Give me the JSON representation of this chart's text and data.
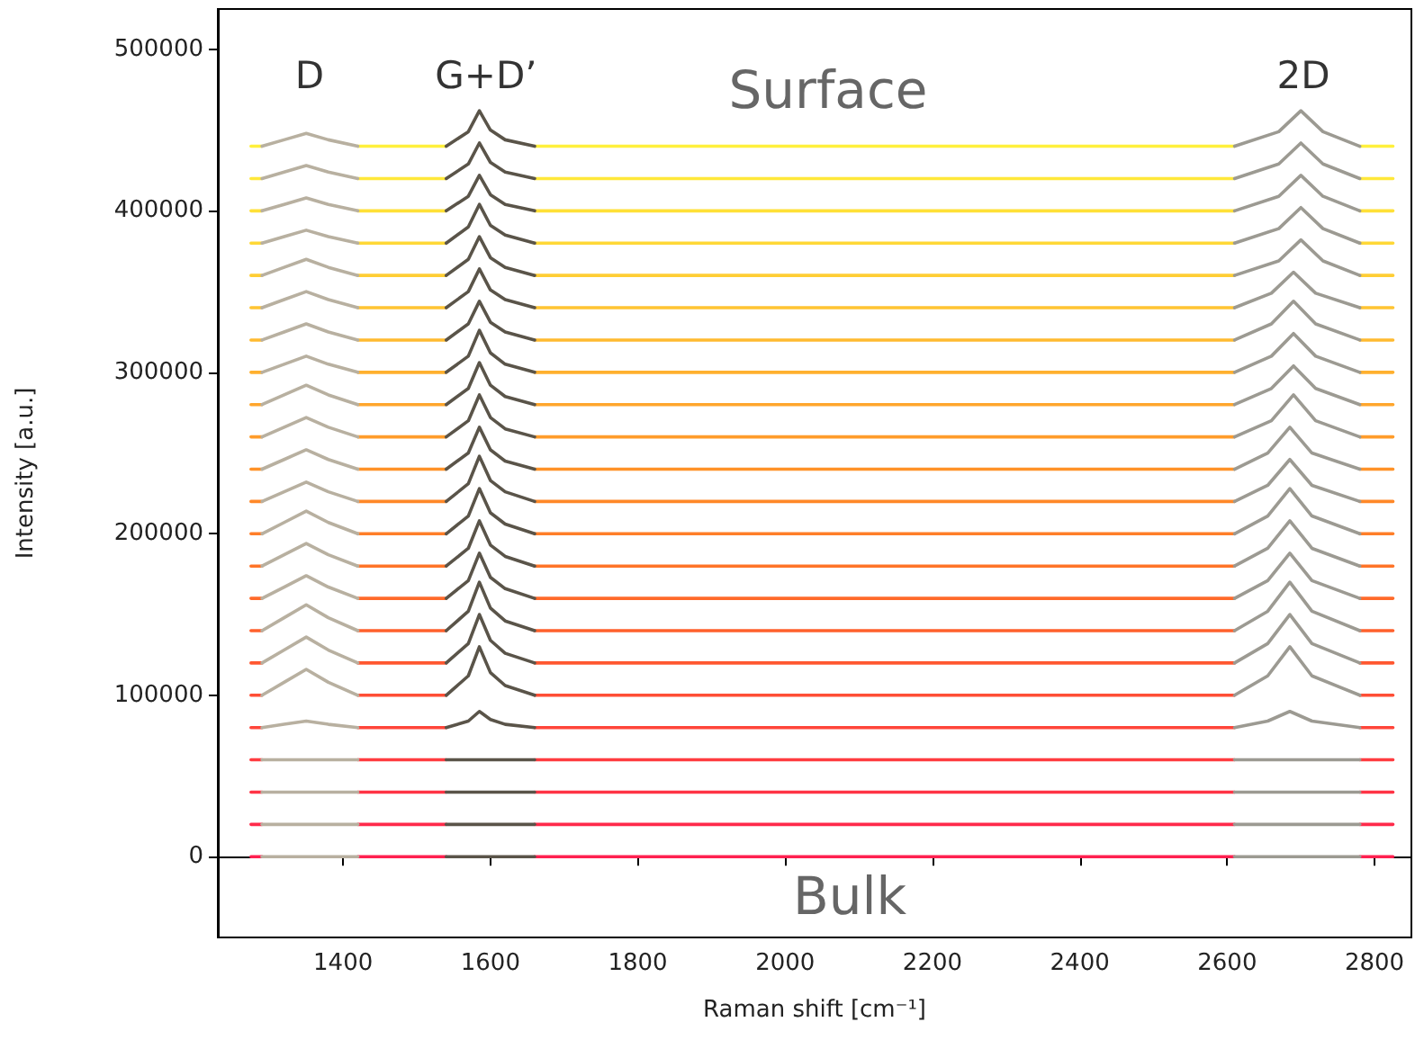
{
  "chart_data": {
    "type": "line",
    "xlabel": "Raman shift [cm⁻¹]",
    "ylabel": "Intensity [a.u.]",
    "annotations": [
      "D",
      "G+D’",
      "Surface",
      "2D",
      "Bulk"
    ],
    "xlim": [
      1230,
      2850
    ],
    "xticks": [
      1400,
      1600,
      1800,
      2000,
      2200,
      2400,
      2600,
      2800
    ],
    "ylim": [
      -50000,
      525000
    ],
    "yticks": [
      0,
      100000,
      200000,
      300000,
      400000,
      500000
    ],
    "marker": "none",
    "line_style": "solid",
    "x": [
      1275,
      1290,
      1355,
      1420,
      1540,
      1600,
      1660,
      2000,
      2400,
      2610,
      2700,
      2780,
      2825
    ],
    "series": [
      {
        "color": "#ff2050",
        "values": [
          0,
          0,
          null,
          0,
          0,
          null,
          0,
          0,
          0,
          0,
          null,
          0,
          0
        ]
      },
      {
        "color": "#ff2a4a",
        "values": [
          20000,
          20000,
          null,
          20000,
          20000,
          null,
          20000,
          20000,
          20000,
          20000,
          null,
          20000,
          20000
        ]
      },
      {
        "color": "#ff3345",
        "values": [
          40000,
          40000,
          null,
          40000,
          40000,
          null,
          40000,
          40000,
          40000,
          40000,
          null,
          40000,
          40000
        ]
      },
      {
        "color": "#ff3c40",
        "values": [
          60000,
          60000,
          null,
          60000,
          60000,
          null,
          60000,
          60000,
          60000,
          60000,
          null,
          60000,
          60000
        ]
      },
      {
        "color": "#ff453a",
        "values": [
          80000,
          80000,
          null,
          80000,
          80000,
          null,
          80000,
          80000,
          80000,
          80000,
          null,
          80000,
          80000
        ]
      },
      {
        "color": "#ff4e35",
        "values": [
          100000,
          100000,
          null,
          100000,
          100000,
          null,
          100000,
          100000,
          100000,
          100000,
          null,
          100000,
          100000
        ]
      },
      {
        "color": "#ff5730",
        "values": [
          120000,
          120000,
          null,
          120000,
          120000,
          null,
          120000,
          120000,
          120000,
          120000,
          null,
          120000,
          120000
        ]
      },
      {
        "color": "#ff602c",
        "values": [
          140000,
          140000,
          null,
          140000,
          140000,
          null,
          140000,
          140000,
          140000,
          140000,
          null,
          140000,
          140000
        ]
      },
      {
        "color": "#ff6a2a",
        "values": [
          160000,
          160000,
          null,
          160000,
          160000,
          null,
          160000,
          160000,
          160000,
          160000,
          null,
          160000,
          160000
        ]
      },
      {
        "color": "#ff7428",
        "values": [
          180000,
          180000,
          null,
          180000,
          180000,
          null,
          180000,
          180000,
          180000,
          180000,
          null,
          180000,
          180000
        ]
      },
      {
        "color": "#ff7e28",
        "values": [
          200000,
          200000,
          null,
          200000,
          200000,
          null,
          200000,
          200000,
          200000,
          200000,
          null,
          200000,
          200000
        ]
      },
      {
        "color": "#ff8828",
        "values": [
          220000,
          220000,
          null,
          220000,
          220000,
          null,
          220000,
          220000,
          220000,
          220000,
          null,
          220000,
          220000
        ]
      },
      {
        "color": "#ff9228",
        "values": [
          240000,
          240000,
          null,
          240000,
          240000,
          null,
          240000,
          240000,
          240000,
          240000,
          null,
          240000,
          240000
        ]
      },
      {
        "color": "#ff9c2a",
        "values": [
          260000,
          260000,
          null,
          260000,
          260000,
          null,
          260000,
          260000,
          260000,
          260000,
          null,
          260000,
          260000
        ]
      },
      {
        "color": "#ffa62c",
        "values": [
          280000,
          280000,
          null,
          280000,
          280000,
          null,
          280000,
          280000,
          280000,
          280000,
          null,
          280000,
          280000
        ]
      },
      {
        "color": "#ffb02e",
        "values": [
          300000,
          300000,
          null,
          300000,
          300000,
          null,
          300000,
          300000,
          300000,
          300000,
          null,
          300000,
          300000
        ]
      },
      {
        "color": "#ffba30",
        "values": [
          320000,
          320000,
          null,
          320000,
          320000,
          null,
          320000,
          320000,
          320000,
          320000,
          null,
          320000,
          320000
        ]
      },
      {
        "color": "#ffc432",
        "values": [
          340000,
          340000,
          null,
          340000,
          340000,
          null,
          340000,
          340000,
          340000,
          340000,
          null,
          340000,
          340000
        ]
      },
      {
        "color": "#ffce34",
        "values": [
          360000,
          360000,
          null,
          360000,
          360000,
          null,
          360000,
          360000,
          360000,
          360000,
          null,
          360000,
          360000
        ]
      },
      {
        "color": "#ffd836",
        "values": [
          380000,
          380000,
          null,
          380000,
          380000,
          null,
          380000,
          380000,
          380000,
          380000,
          null,
          380000,
          380000
        ]
      },
      {
        "color": "#ffe038",
        "values": [
          400000,
          400000,
          null,
          400000,
          400000,
          null,
          400000,
          400000,
          400000,
          400000,
          null,
          400000,
          400000
        ]
      },
      {
        "color": "#ffe83a",
        "values": [
          420000,
          420000,
          null,
          420000,
          420000,
          null,
          420000,
          420000,
          420000,
          420000,
          null,
          420000,
          420000
        ]
      },
      {
        "color": "#fff03c",
        "values": [
          440000,
          440000,
          null,
          440000,
          440000,
          null,
          440000,
          440000,
          440000,
          440000,
          null,
          440000,
          440000
        ]
      },
      {
        "color": "#b8b0a0",
        "x": [
          1290,
          1320,
          1350,
          1380,
          1420
        ],
        "values": [
          0,
          0,
          0,
          0,
          0
        ]
      },
      {
        "color": "#b8b0a0",
        "x": [
          1290,
          1320,
          1350,
          1380,
          1420
        ],
        "values": [
          20000,
          20000,
          20000,
          20000,
          20000
        ]
      },
      {
        "color": "#b8b0a0",
        "x": [
          1290,
          1320,
          1350,
          1380,
          1420
        ],
        "values": [
          40000,
          40000,
          40000,
          40000,
          40000
        ]
      },
      {
        "color": "#b8b0a0",
        "x": [
          1290,
          1320,
          1350,
          1380,
          1420
        ],
        "values": [
          60000,
          60000,
          60000,
          60000,
          60000
        ]
      },
      {
        "color": "#b8b0a0",
        "x": [
          1290,
          1320,
          1350,
          1380,
          1420
        ],
        "values": [
          80000,
          82000,
          84000,
          82000,
          80000
        ]
      },
      {
        "color": "#b8b0a0",
        "x": [
          1290,
          1320,
          1350,
          1380,
          1420
        ],
        "values": [
          100000,
          108000,
          116000,
          108000,
          100000
        ]
      },
      {
        "color": "#b8b0a0",
        "x": [
          1290,
          1320,
          1350,
          1380,
          1420
        ],
        "values": [
          120000,
          128000,
          136000,
          128000,
          120000
        ]
      },
      {
        "color": "#b8b0a0",
        "x": [
          1290,
          1320,
          1350,
          1380,
          1420
        ],
        "values": [
          140000,
          148000,
          156000,
          148000,
          140000
        ]
      },
      {
        "color": "#b8b0a0",
        "x": [
          1290,
          1320,
          1350,
          1380,
          1420
        ],
        "values": [
          160000,
          167000,
          174000,
          167000,
          160000
        ]
      },
      {
        "color": "#b8b0a0",
        "x": [
          1290,
          1320,
          1350,
          1380,
          1420
        ],
        "values": [
          180000,
          187000,
          194000,
          187000,
          180000
        ]
      },
      {
        "color": "#b8b0a0",
        "x": [
          1290,
          1320,
          1350,
          1380,
          1420
        ],
        "values": [
          200000,
          207000,
          214000,
          207000,
          200000
        ]
      },
      {
        "color": "#b8b0a0",
        "x": [
          1290,
          1320,
          1350,
          1380,
          1420
        ],
        "values": [
          220000,
          226000,
          232000,
          226000,
          220000
        ]
      },
      {
        "color": "#b8b0a0",
        "x": [
          1290,
          1320,
          1350,
          1380,
          1420
        ],
        "values": [
          240000,
          246000,
          252000,
          246000,
          240000
        ]
      },
      {
        "color": "#b8b0a0",
        "x": [
          1290,
          1320,
          1350,
          1380,
          1420
        ],
        "values": [
          260000,
          266000,
          272000,
          266000,
          260000
        ]
      },
      {
        "color": "#b8b0a0",
        "x": [
          1290,
          1320,
          1350,
          1380,
          1420
        ],
        "values": [
          280000,
          286000,
          292000,
          286000,
          280000
        ]
      },
      {
        "color": "#b8b0a0",
        "x": [
          1290,
          1320,
          1350,
          1380,
          1420
        ],
        "values": [
          300000,
          305000,
          310000,
          305000,
          300000
        ]
      },
      {
        "color": "#b8b0a0",
        "x": [
          1290,
          1320,
          1350,
          1380,
          1420
        ],
        "values": [
          320000,
          325000,
          330000,
          325000,
          320000
        ]
      },
      {
        "color": "#b8b0a0",
        "x": [
          1290,
          1320,
          1350,
          1380,
          1420
        ],
        "values": [
          340000,
          345000,
          350000,
          345000,
          340000
        ]
      },
      {
        "color": "#b8b0a0",
        "x": [
          1290,
          1320,
          1350,
          1380,
          1420
        ],
        "values": [
          360000,
          365000,
          370000,
          365000,
          360000
        ]
      },
      {
        "color": "#b8b0a0",
        "x": [
          1290,
          1320,
          1350,
          1380,
          1420
        ],
        "values": [
          380000,
          384000,
          388000,
          384000,
          380000
        ]
      },
      {
        "color": "#b8b0a0",
        "x": [
          1290,
          1320,
          1350,
          1380,
          1420
        ],
        "values": [
          400000,
          404000,
          408000,
          404000,
          400000
        ]
      },
      {
        "color": "#b8b0a0",
        "x": [
          1290,
          1320,
          1350,
          1380,
          1420
        ],
        "values": [
          420000,
          424000,
          428000,
          424000,
          420000
        ]
      },
      {
        "color": "#b8b0a0",
        "x": [
          1290,
          1320,
          1350,
          1380,
          1420
        ],
        "values": [
          440000,
          444000,
          448000,
          444000,
          440000
        ]
      },
      {
        "color": "#5a5449",
        "x": [
          1540,
          1570,
          1585,
          1600,
          1620,
          1660
        ],
        "values": [
          0,
          0,
          0,
          0,
          0,
          0
        ]
      },
      {
        "color": "#5a5449",
        "x": [
          1540,
          1570,
          1585,
          1600,
          1620,
          1660
        ],
        "values": [
          20000,
          20000,
          20000,
          20000,
          20000,
          20000
        ]
      },
      {
        "color": "#5a5449",
        "x": [
          1540,
          1570,
          1585,
          1600,
          1620,
          1660
        ],
        "values": [
          40000,
          40000,
          40000,
          40000,
          40000,
          40000
        ]
      },
      {
        "color": "#5a5449",
        "x": [
          1540,
          1570,
          1585,
          1600,
          1620,
          1660
        ],
        "values": [
          60000,
          60000,
          60000,
          60000,
          60000,
          60000
        ]
      },
      {
        "color": "#5a5449",
        "x": [
          1540,
          1570,
          1585,
          1600,
          1620,
          1660
        ],
        "values": [
          80000,
          84000,
          90000,
          85000,
          82000,
          80000
        ]
      },
      {
        "color": "#5a5449",
        "x": [
          1540,
          1570,
          1585,
          1600,
          1620,
          1660
        ],
        "values": [
          100000,
          112000,
          130000,
          114000,
          106000,
          100000
        ]
      },
      {
        "color": "#5a5449",
        "x": [
          1540,
          1570,
          1585,
          1600,
          1620,
          1660
        ],
        "values": [
          120000,
          132000,
          150000,
          134000,
          126000,
          120000
        ]
      },
      {
        "color": "#5a5449",
        "x": [
          1540,
          1570,
          1585,
          1600,
          1620,
          1660
        ],
        "values": [
          140000,
          152000,
          170000,
          154000,
          146000,
          140000
        ]
      },
      {
        "color": "#5a5449",
        "x": [
          1540,
          1570,
          1585,
          1600,
          1620,
          1660
        ],
        "values": [
          160000,
          171000,
          188000,
          173000,
          166000,
          160000
        ]
      },
      {
        "color": "#5a5449",
        "x": [
          1540,
          1570,
          1585,
          1600,
          1620,
          1660
        ],
        "values": [
          180000,
          191000,
          208000,
          193000,
          186000,
          180000
        ]
      },
      {
        "color": "#5a5449",
        "x": [
          1540,
          1570,
          1585,
          1600,
          1620,
          1660
        ],
        "values": [
          200000,
          211000,
          228000,
          213000,
          206000,
          200000
        ]
      },
      {
        "color": "#5a5449",
        "x": [
          1540,
          1570,
          1585,
          1600,
          1620,
          1660
        ],
        "values": [
          220000,
          231000,
          248000,
          233000,
          226000,
          220000
        ]
      },
      {
        "color": "#5a5449",
        "x": [
          1540,
          1570,
          1585,
          1600,
          1620,
          1660
        ],
        "values": [
          240000,
          250000,
          266000,
          252000,
          245000,
          240000
        ]
      },
      {
        "color": "#5a5449",
        "x": [
          1540,
          1570,
          1585,
          1600,
          1620,
          1660
        ],
        "values": [
          260000,
          270000,
          286000,
          272000,
          265000,
          260000
        ]
      },
      {
        "color": "#5a5449",
        "x": [
          1540,
          1570,
          1585,
          1600,
          1620,
          1660
        ],
        "values": [
          280000,
          290000,
          306000,
          292000,
          285000,
          280000
        ]
      },
      {
        "color": "#5a5449",
        "x": [
          1540,
          1570,
          1585,
          1600,
          1620,
          1660
        ],
        "values": [
          300000,
          310000,
          326000,
          312000,
          305000,
          300000
        ]
      },
      {
        "color": "#5a5449",
        "x": [
          1540,
          1570,
          1585,
          1600,
          1620,
          1660
        ],
        "values": [
          320000,
          330000,
          344000,
          331000,
          325000,
          320000
        ]
      },
      {
        "color": "#5a5449",
        "x": [
          1540,
          1570,
          1585,
          1600,
          1620,
          1660
        ],
        "values": [
          340000,
          350000,
          364000,
          351000,
          345000,
          340000
        ]
      },
      {
        "color": "#5a5449",
        "x": [
          1540,
          1570,
          1585,
          1600,
          1620,
          1660
        ],
        "values": [
          360000,
          370000,
          384000,
          371000,
          365000,
          360000
        ]
      },
      {
        "color": "#5a5449",
        "x": [
          1540,
          1570,
          1585,
          1600,
          1620,
          1660
        ],
        "values": [
          380000,
          390000,
          404000,
          391000,
          385000,
          380000
        ]
      },
      {
        "color": "#5a5449",
        "x": [
          1540,
          1570,
          1585,
          1600,
          1620,
          1660
        ],
        "values": [
          400000,
          409000,
          422000,
          410000,
          404000,
          400000
        ]
      },
      {
        "color": "#5a5449",
        "x": [
          1540,
          1570,
          1585,
          1600,
          1620,
          1660
        ],
        "values": [
          420000,
          429000,
          442000,
          430000,
          424000,
          420000
        ]
      },
      {
        "color": "#5a5449",
        "x": [
          1540,
          1570,
          1585,
          1600,
          1620,
          1660
        ],
        "values": [
          440000,
          449000,
          462000,
          450000,
          444000,
          440000
        ]
      },
      {
        "color": "#9c9a92",
        "x": [
          2610,
          2655,
          2685,
          2715,
          2780
        ],
        "values": [
          0,
          0,
          0,
          0,
          0
        ]
      },
      {
        "color": "#9c9a92",
        "x": [
          2610,
          2655,
          2685,
          2715,
          2780
        ],
        "values": [
          20000,
          20000,
          20000,
          20000,
          20000
        ]
      },
      {
        "color": "#9c9a92",
        "x": [
          2610,
          2655,
          2685,
          2715,
          2780
        ],
        "values": [
          40000,
          40000,
          40000,
          40000,
          40000
        ]
      },
      {
        "color": "#9c9a92",
        "x": [
          2610,
          2655,
          2685,
          2715,
          2780
        ],
        "values": [
          60000,
          60000,
          60000,
          60000,
          60000
        ]
      },
      {
        "color": "#9c9a92",
        "x": [
          2610,
          2655,
          2685,
          2715,
          2780
        ],
        "values": [
          80000,
          84000,
          90000,
          84000,
          80000
        ]
      },
      {
        "color": "#9c9a92",
        "x": [
          2610,
          2655,
          2685,
          2715,
          2780
        ],
        "values": [
          100000,
          112000,
          130000,
          112000,
          100000
        ]
      },
      {
        "color": "#9c9a92",
        "x": [
          2610,
          2655,
          2685,
          2715,
          2780
        ],
        "values": [
          120000,
          132000,
          150000,
          132000,
          120000
        ]
      },
      {
        "color": "#9c9a92",
        "x": [
          2610,
          2655,
          2685,
          2715,
          2780
        ],
        "values": [
          140000,
          152000,
          170000,
          152000,
          140000
        ]
      },
      {
        "color": "#9c9a92",
        "x": [
          2610,
          2655,
          2685,
          2715,
          2780
        ],
        "values": [
          160000,
          171000,
          188000,
          171000,
          160000
        ]
      },
      {
        "color": "#9c9a92",
        "x": [
          2610,
          2655,
          2685,
          2715,
          2780
        ],
        "values": [
          180000,
          191000,
          208000,
          191000,
          180000
        ]
      },
      {
        "color": "#9c9a92",
        "x": [
          2610,
          2655,
          2685,
          2715,
          2780
        ],
        "values": [
          200000,
          211000,
          228000,
          211000,
          200000
        ]
      },
      {
        "color": "#9c9a92",
        "x": [
          2610,
          2655,
          2685,
          2715,
          2780
        ],
        "values": [
          220000,
          230000,
          246000,
          230000,
          220000
        ]
      },
      {
        "color": "#9c9a92",
        "x": [
          2610,
          2655,
          2685,
          2715,
          2780
        ],
        "values": [
          240000,
          250000,
          266000,
          250000,
          240000
        ]
      },
      {
        "color": "#9c9a92",
        "x": [
          2610,
          2660,
          2690,
          2720,
          2780
        ],
        "values": [
          260000,
          270000,
          286000,
          270000,
          260000
        ]
      },
      {
        "color": "#9c9a92",
        "x": [
          2610,
          2660,
          2690,
          2720,
          2780
        ],
        "values": [
          280000,
          290000,
          304000,
          290000,
          280000
        ]
      },
      {
        "color": "#9c9a92",
        "x": [
          2610,
          2660,
          2690,
          2720,
          2780
        ],
        "values": [
          300000,
          310000,
          324000,
          310000,
          300000
        ]
      },
      {
        "color": "#9c9a92",
        "x": [
          2610,
          2660,
          2690,
          2720,
          2780
        ],
        "values": [
          320000,
          330000,
          344000,
          330000,
          320000
        ]
      },
      {
        "color": "#9c9a92",
        "x": [
          2610,
          2660,
          2690,
          2720,
          2780
        ],
        "values": [
          340000,
          349000,
          362000,
          349000,
          340000
        ]
      },
      {
        "color": "#9c9a92",
        "x": [
          2610,
          2670,
          2700,
          2730,
          2780
        ],
        "values": [
          360000,
          369000,
          382000,
          369000,
          360000
        ]
      },
      {
        "color": "#9c9a92",
        "x": [
          2610,
          2670,
          2700,
          2730,
          2780
        ],
        "values": [
          380000,
          389000,
          402000,
          389000,
          380000
        ]
      },
      {
        "color": "#9c9a92",
        "x": [
          2610,
          2670,
          2700,
          2730,
          2780
        ],
        "values": [
          400000,
          409000,
          422000,
          409000,
          400000
        ]
      },
      {
        "color": "#9c9a92",
        "x": [
          2610,
          2670,
          2700,
          2730,
          2780
        ],
        "values": [
          420000,
          429000,
          442000,
          429000,
          420000
        ]
      },
      {
        "color": "#9c9a92",
        "x": [
          2610,
          2670,
          2700,
          2730,
          2780
        ],
        "values": [
          440000,
          449000,
          462000,
          449000,
          440000
        ]
      }
    ]
  }
}
